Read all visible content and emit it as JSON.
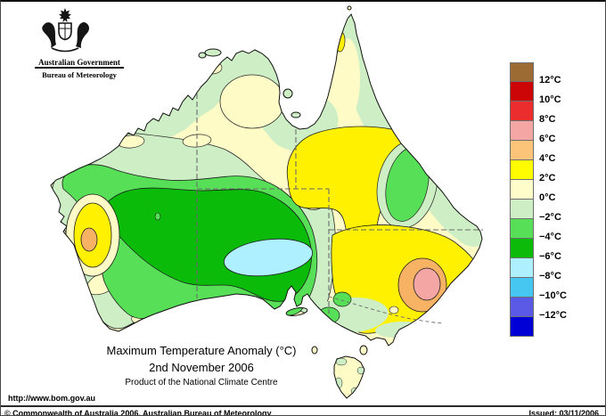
{
  "header": {
    "government": "Australian Government",
    "bureau": "Bureau of Meteorology"
  },
  "titles": {
    "main": "Maximum Temperature Anomaly (°C)",
    "date": "2nd November 2006",
    "product": "Product of the National Climate Centre"
  },
  "legend": {
    "unit": "°C",
    "colors": [
      "#9C6B33",
      "#CC0606",
      "#EB2D2D",
      "#F3A6A4",
      "#FBC478",
      "#FFFB00",
      "#FFFDC9",
      "#CEEFC6",
      "#57E057",
      "#0ABB0A",
      "#AEF0FF",
      "#45C7F2",
      "#5A5AE6",
      "#0000D6"
    ],
    "labels": [
      "12°C",
      "10°C",
      "8°C",
      "6°C",
      "4°C",
      "2°C",
      "0°C",
      "−2°C",
      "−4°C",
      "−6°C",
      "−8°C",
      "−10°C",
      "−12°C"
    ]
  },
  "footer": {
    "url": "http://www.bom.gov.au",
    "copyright": "© Commonwealth of Australia 2006, Australian Bureau of Meteorology",
    "issued": "Issued: 03/11/2006"
  }
}
